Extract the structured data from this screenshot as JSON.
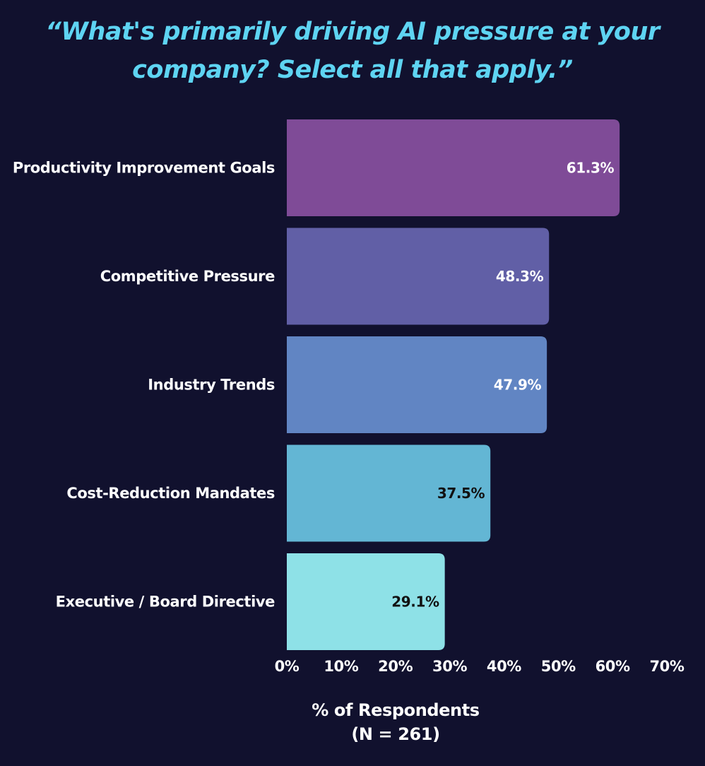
{
  "chart_data": {
    "type": "bar",
    "orientation": "horizontal",
    "title": "“What's primarily driving AI pressure at your company? Select all that apply.”",
    "categories": [
      "Productivity Improvement Goals",
      "Competitive Pressure",
      "Industry Trends",
      "Cost-Reduction Mandates",
      "Executive / Board Directive"
    ],
    "values": [
      61.3,
      48.3,
      47.9,
      37.5,
      29.1
    ],
    "value_labels": [
      "61.3%",
      "48.3%",
      "47.9%",
      "37.5%",
      "29.1%"
    ],
    "bar_colors": [
      "#7f4b97",
      "#615fa6",
      "#6185c3",
      "#63b6d4",
      "#8ee1e7"
    ],
    "value_label_colors": [
      "#ffffff",
      "#ffffff",
      "#ffffff",
      "#111111",
      "#111111"
    ],
    "xlim": [
      0,
      70
    ],
    "xticks": [
      0,
      10,
      20,
      30,
      40,
      50,
      60,
      70
    ],
    "xtick_labels": [
      "0%",
      "10%",
      "20%",
      "30%",
      "40%",
      "50%",
      "60%",
      "70%"
    ],
    "xlabel": "% of Respondents",
    "xlabel_sub": "(N = 261)",
    "grid": false,
    "legend": "none"
  },
  "colors": {
    "background": "#11112e",
    "title": "#5ed4f2",
    "text": "#ffffff"
  }
}
